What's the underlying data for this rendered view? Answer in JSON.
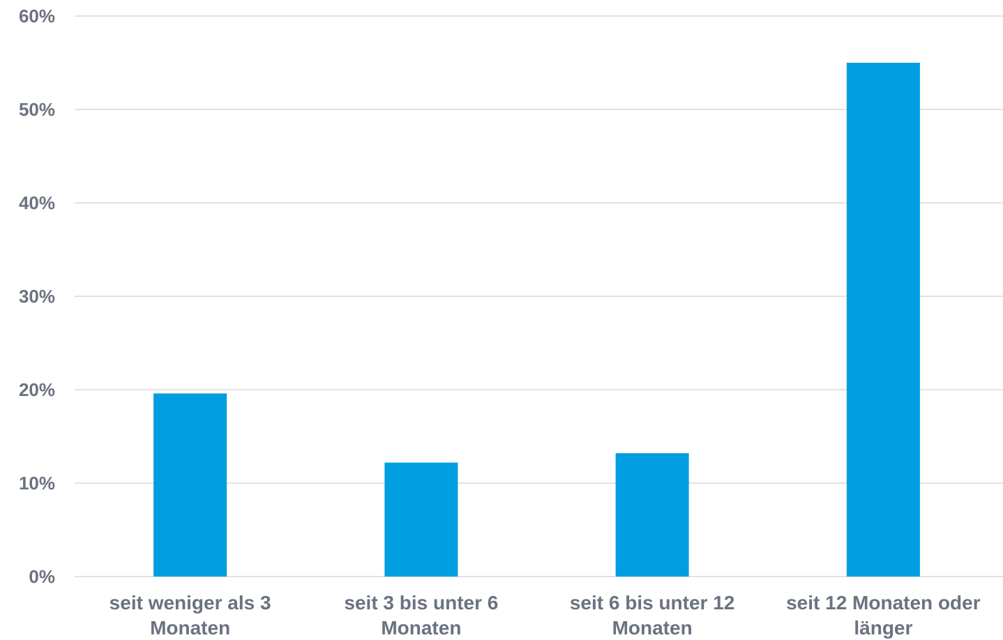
{
  "chart_data": {
    "type": "bar",
    "categories": [
      [
        "seit weniger als 3",
        "Monaten"
      ],
      [
        "seit 3 bis unter 6",
        "Monaten"
      ],
      [
        "seit 6 bis unter 12",
        "Monaten"
      ],
      [
        "seit 12 Monaten oder",
        "länger"
      ]
    ],
    "values": [
      19.6,
      12.2,
      13.2,
      55.0
    ],
    "y_ticks": [
      "0%",
      "10%",
      "20%",
      "30%",
      "40%",
      "50%",
      "60%"
    ],
    "ylim": [
      0,
      60
    ],
    "grid": true,
    "legend": "none",
    "title": "",
    "xlabel": "",
    "ylabel": "",
    "colors": {
      "bar": "#009de0",
      "grid": "#d9d9d9",
      "text": "#6b7280"
    }
  }
}
